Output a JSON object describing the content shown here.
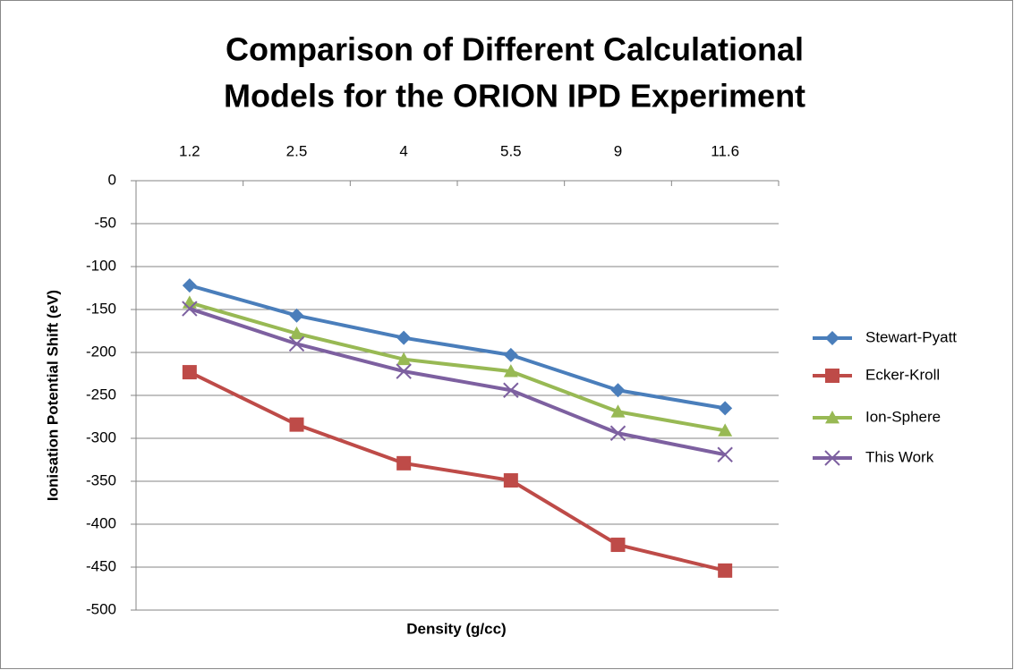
{
  "chart_data": {
    "type": "line",
    "title": [
      "Comparison of Different Calculational",
      "Models for the ORION IPD Experiment"
    ],
    "x_label": "Density (g/cc)",
    "y_label": "Ionisation Potential Shift (eV)",
    "categories": [
      "1.2",
      "2.5",
      "4",
      "5.5",
      "9",
      "11.6"
    ],
    "ylim": [
      -500,
      0
    ],
    "yticks": [
      0,
      -50,
      -100,
      -150,
      -200,
      -250,
      -300,
      -350,
      -400,
      -450,
      -500
    ],
    "grid": true,
    "legend": "right",
    "series": [
      {
        "name": "Stewart-Pyatt",
        "color": "#4a7ebb",
        "marker": "diamond",
        "values": [
          -122,
          -157,
          -183,
          -203,
          -244,
          -265
        ]
      },
      {
        "name": "Ecker-Kroll",
        "color": "#be4b48",
        "marker": "square",
        "values": [
          -223,
          -284,
          -329,
          -349,
          -424,
          -454
        ]
      },
      {
        "name": "Ion-Sphere",
        "color": "#98b954",
        "marker": "triangle",
        "values": [
          -142,
          -178,
          -208,
          -222,
          -269,
          -291
        ]
      },
      {
        "name": "This Work",
        "color": "#7d60a0",
        "marker": "x",
        "values": [
          -149,
          -190,
          -222,
          -244,
          -294,
          -319
        ]
      }
    ]
  }
}
